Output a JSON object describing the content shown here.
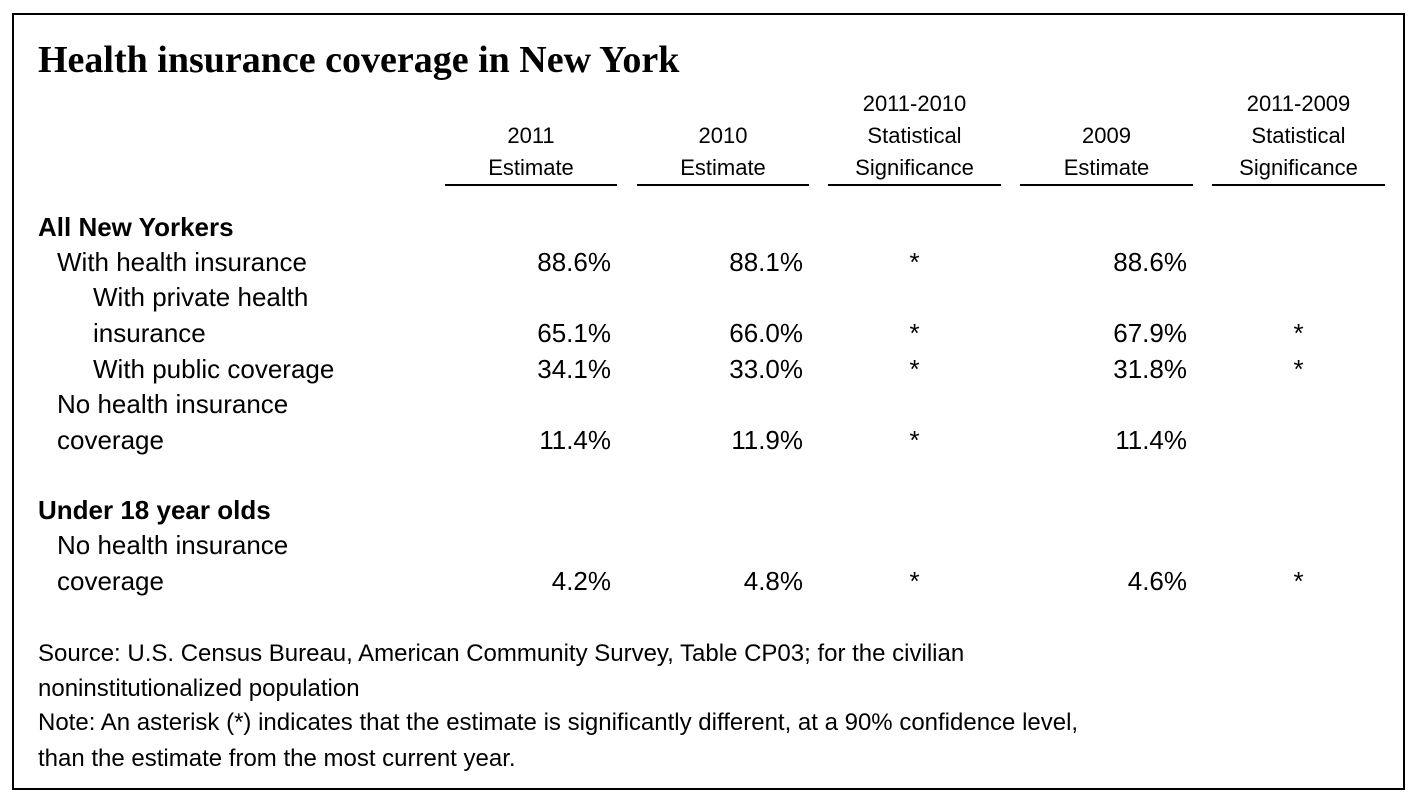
{
  "title": "Health insurance coverage in New York",
  "columns": [
    {
      "lines": [
        "",
        "2011",
        "Estimate"
      ]
    },
    {
      "lines": [
        "",
        "2010",
        "Estimate"
      ]
    },
    {
      "lines": [
        "2011-2010",
        "Statistical",
        "Significance"
      ]
    },
    {
      "lines": [
        "",
        "2009",
        "Estimate"
      ]
    },
    {
      "lines": [
        "2011-2009",
        "Statistical",
        "Significance"
      ]
    }
  ],
  "sections": [
    {
      "heading": "All New Yorkers",
      "rows": [
        {
          "label": [
            "With health insurance"
          ],
          "values": [
            "88.6%",
            "88.1%",
            "*",
            "88.6%",
            ""
          ]
        },
        {
          "label": [
            "With private health",
            "insurance"
          ],
          "values": [
            "65.1%",
            "66.0%",
            "*",
            "67.9%",
            "*"
          ]
        },
        {
          "label": [
            "With public coverage"
          ],
          "values": [
            "34.1%",
            "33.0%",
            "*",
            "31.8%",
            "*"
          ]
        },
        {
          "label": [
            "No health insurance",
            "coverage"
          ],
          "values": [
            "11.4%",
            "11.9%",
            "*",
            "11.4%",
            ""
          ]
        }
      ]
    },
    {
      "heading": "Under 18 year olds",
      "rows": [
        {
          "label": [
            "No health insurance",
            "coverage"
          ],
          "values": [
            "4.2%",
            "4.8%",
            "*",
            "4.6%",
            "*"
          ]
        }
      ]
    }
  ],
  "footnotes": {
    "source_line1": "Source: U.S. Census Bureau, American Community Survey, Table CP03; for the civilian",
    "source_line2": "noninstitutionalized population",
    "note_line1": "Note: An asterisk (*) indicates that the estimate is significantly different, at a 90% confidence level,",
    "note_line2": "than the estimate from the most current year."
  }
}
